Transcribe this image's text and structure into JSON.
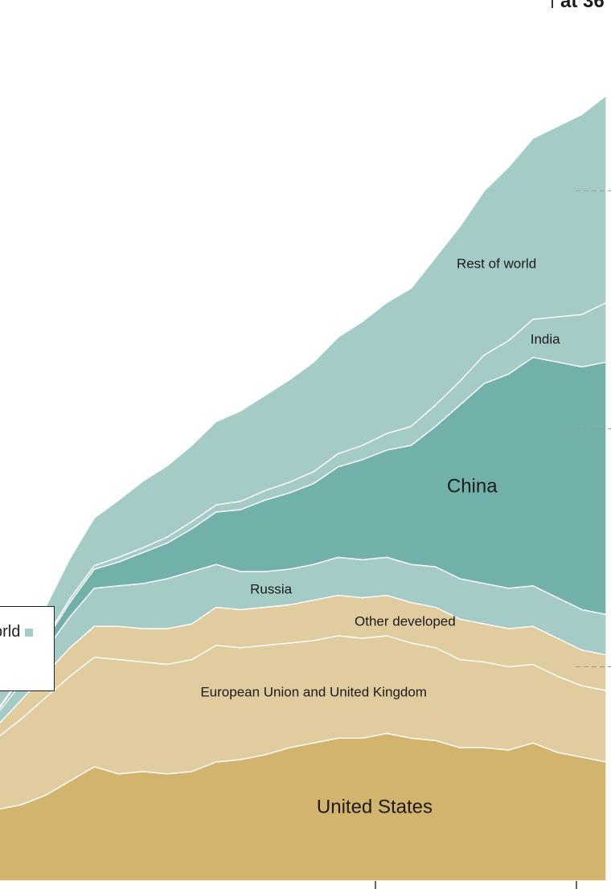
{
  "chart_data": {
    "type": "area",
    "stacked": true,
    "title": "",
    "corner_label": "at 36",
    "xlabel": "",
    "ylabel": "",
    "x": [
      0,
      4,
      8,
      12,
      16,
      20,
      24,
      28,
      32,
      36,
      40,
      44,
      48,
      52,
      56,
      60,
      64,
      68,
      72,
      76,
      80,
      84,
      88,
      92,
      96,
      100
    ],
    "ylim": [
      0,
      36
    ],
    "series": [
      {
        "name": "United States",
        "color": "#d3b46c",
        "label_color": "#1a1a1a",
        "values": [
          3.0,
          3.2,
          3.6,
          4.2,
          4.8,
          4.5,
          4.6,
          4.5,
          4.6,
          5.0,
          5.1,
          5.3,
          5.6,
          5.8,
          6.0,
          6.0,
          6.2,
          6.0,
          5.9,
          5.6,
          5.6,
          5.5,
          5.8,
          5.4,
          5.2,
          5.0
        ]
      },
      {
        "name": "European Union and United Kingdom",
        "color": "#e1cc9f",
        "label_color": "#1a1a1a",
        "values": [
          3.0,
          3.6,
          4.1,
          4.4,
          4.6,
          4.8,
          4.6,
          4.6,
          4.7,
          4.9,
          4.7,
          4.6,
          4.4,
          4.3,
          4.3,
          4.2,
          4.1,
          4.0,
          3.9,
          3.7,
          3.6,
          3.5,
          3.3,
          3.2,
          3.0,
          3.0
        ]
      },
      {
        "name": "Other developed",
        "color": "#e1cc9f",
        "label_color": "#1a1a1a",
        "values": [
          0.5,
          0.8,
          1.0,
          1.2,
          1.3,
          1.4,
          1.4,
          1.5,
          1.5,
          1.6,
          1.6,
          1.6,
          1.6,
          1.7,
          1.7,
          1.7,
          1.7,
          1.7,
          1.7,
          1.7,
          1.6,
          1.6,
          1.6,
          1.6,
          1.5,
          1.5
        ]
      },
      {
        "name": "Russia",
        "color": "#a4cbc6",
        "label_color": "#1a1a1a",
        "values": [
          0.5,
          0.7,
          1.0,
          1.3,
          1.6,
          1.7,
          1.9,
          2.1,
          2.2,
          1.8,
          1.6,
          1.5,
          1.5,
          1.5,
          1.6,
          1.6,
          1.6,
          1.6,
          1.7,
          1.7,
          1.7,
          1.7,
          1.7,
          1.7,
          1.7,
          1.7
        ]
      },
      {
        "name": "China",
        "color": "#72b0aa",
        "label_color": "#1a1a1a",
        "values": [
          0.1,
          0.2,
          0.4,
          0.6,
          0.8,
          1.0,
          1.3,
          1.5,
          1.8,
          2.2,
          2.6,
          3.0,
          3.2,
          3.4,
          3.8,
          4.2,
          4.5,
          5.0,
          5.9,
          7.3,
          8.4,
          9.0,
          9.6,
          9.9,
          10.2,
          10.6
        ]
      },
      {
        "name": "India",
        "color": "#a4cbc6",
        "label_color": "#1a1a1a",
        "values": [
          0.05,
          0.1,
          0.1,
          0.15,
          0.15,
          0.2,
          0.2,
          0.25,
          0.3,
          0.3,
          0.35,
          0.4,
          0.45,
          0.5,
          0.55,
          0.6,
          0.7,
          0.8,
          0.9,
          1.0,
          1.2,
          1.4,
          1.6,
          1.9,
          2.2,
          2.5
        ]
      },
      {
        "name": "Rest of world",
        "color": "#a4cbc6",
        "label_color": "#1a1a1a",
        "values": [
          0.6,
          1.0,
          1.3,
          1.7,
          2.0,
          2.4,
          2.8,
          3.0,
          3.2,
          3.5,
          3.8,
          4.0,
          4.3,
          4.6,
          4.9,
          5.2,
          5.5,
          5.8,
          6.2,
          6.5,
          6.9,
          7.3,
          7.6,
          8.0,
          8.4,
          8.7
        ]
      }
    ],
    "area_labels": [
      "Rest of world",
      "India",
      "China",
      "Russia",
      "Other developed",
      "European Union and United Kingdom",
      "United States"
    ],
    "legend": [
      {
        "label": "Rest of world",
        "color": "#a4cbc6"
      },
      {
        "label": "Developed countries",
        "color": "#e1cc9f"
      }
    ],
    "legend_visible_text": [
      "orld",
      "s"
    ]
  }
}
